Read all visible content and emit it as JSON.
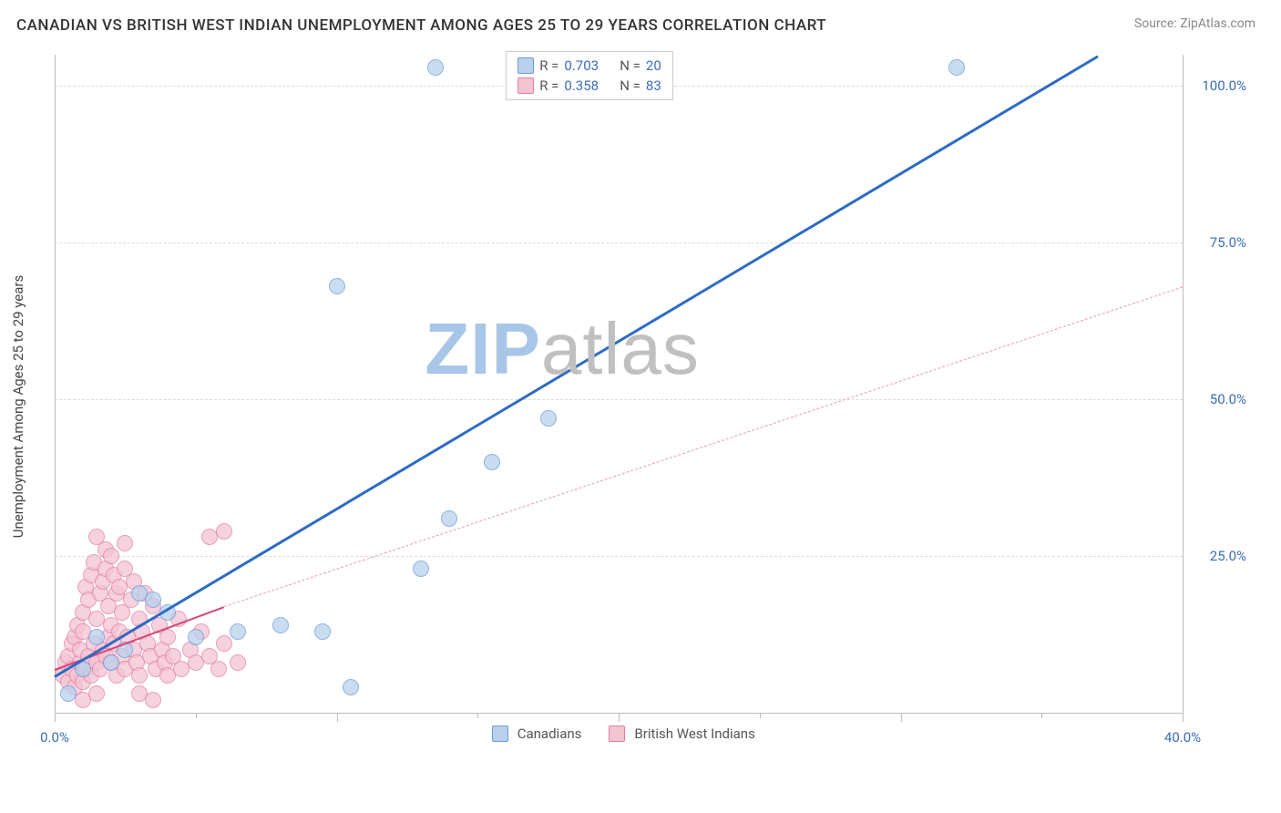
{
  "title": "CANADIAN VS BRITISH WEST INDIAN UNEMPLOYMENT AMONG AGES 25 TO 29 YEARS CORRELATION CHART",
  "source_label": "Source:",
  "source_value": "ZipAtlas.com",
  "ylabel": "Unemployment Among Ages 25 to 29 years",
  "watermark_zip": "ZIP",
  "watermark_atlas": "atlas",
  "watermark_color_zip": "#a8c6e8",
  "watermark_color_atlas": "#c0c0c0",
  "chart": {
    "type": "scatter",
    "background_color": "#ffffff",
    "grid_color": "#dddddd",
    "axis_color": "#bbbbbb",
    "xlim": [
      0,
      40
    ],
    "ylim": [
      0,
      105
    ],
    "xtick_major": [
      0,
      10,
      20,
      30,
      40
    ],
    "xtick_minor": [
      5,
      15,
      25,
      35
    ],
    "xtick_labels": [
      {
        "v": 0,
        "t": "0.0%"
      },
      {
        "v": 40,
        "t": "40.0%"
      }
    ],
    "ytick_lines": [
      25,
      50,
      75,
      100
    ],
    "ytick_labels": [
      {
        "v": 25,
        "t": "25.0%"
      },
      {
        "v": 50,
        "t": "50.0%"
      },
      {
        "v": 75,
        "t": "75.0%"
      },
      {
        "v": 100,
        "t": "100.0%"
      }
    ],
    "xtick_color": "#3b6db5",
    "ytick_color": "#3b6db5",
    "marker_size": 18,
    "marker_stroke": 1.5,
    "series": [
      {
        "id": "canadians",
        "label": "Canadians",
        "color_fill": "#b9d1ec",
        "color_stroke": "#6a9bd8",
        "R": "0.703",
        "N": "20",
        "trend": {
          "x1": 0,
          "y1": 6,
          "x2": 37,
          "y2": 105,
          "width": 3,
          "dash": false,
          "color": "#2d6bc4"
        },
        "points": [
          [
            0.5,
            3
          ],
          [
            1.0,
            7
          ],
          [
            1.5,
            12
          ],
          [
            2.0,
            8
          ],
          [
            2.5,
            10
          ],
          [
            3.0,
            19
          ],
          [
            3.5,
            18
          ],
          [
            4.0,
            16
          ],
          [
            5.0,
            12
          ],
          [
            6.5,
            13
          ],
          [
            8.0,
            14
          ],
          [
            9.5,
            13
          ],
          [
            10.5,
            4
          ],
          [
            13.0,
            23
          ],
          [
            13.5,
            103
          ],
          [
            14.0,
            31
          ],
          [
            15.5,
            40
          ],
          [
            17.5,
            47
          ],
          [
            10.0,
            68
          ],
          [
            32.0,
            103
          ]
        ]
      },
      {
        "id": "bwi",
        "label": "British West Indians",
        "color_fill": "#f4c4d3",
        "color_stroke": "#e37fa4",
        "R": "0.358",
        "N": "83",
        "trend_solid": {
          "x1": 0,
          "y1": 7,
          "x2": 6,
          "y2": 17,
          "width": 2.5,
          "color": "#d6447a"
        },
        "trend_dash": {
          "x1": 6,
          "y1": 17,
          "x2": 40,
          "y2": 68,
          "width": 1,
          "color": "#e89ab5"
        },
        "points": [
          [
            0.3,
            6
          ],
          [
            0.4,
            8
          ],
          [
            0.5,
            5
          ],
          [
            0.5,
            9
          ],
          [
            0.6,
            7
          ],
          [
            0.6,
            11
          ],
          [
            0.7,
            4
          ],
          [
            0.7,
            12
          ],
          [
            0.8,
            6
          ],
          [
            0.8,
            14
          ],
          [
            0.9,
            8
          ],
          [
            0.9,
            10
          ],
          [
            1.0,
            5
          ],
          [
            1.0,
            13
          ],
          [
            1.0,
            16
          ],
          [
            1.1,
            7
          ],
          [
            1.1,
            20
          ],
          [
            1.2,
            9
          ],
          [
            1.2,
            18
          ],
          [
            1.3,
            6
          ],
          [
            1.3,
            22
          ],
          [
            1.4,
            11
          ],
          [
            1.4,
            24
          ],
          [
            1.5,
            8
          ],
          [
            1.5,
            15
          ],
          [
            1.5,
            28
          ],
          [
            1.6,
            7
          ],
          [
            1.6,
            19
          ],
          [
            1.7,
            10
          ],
          [
            1.7,
            21
          ],
          [
            1.8,
            9
          ],
          [
            1.8,
            23
          ],
          [
            1.8,
            26
          ],
          [
            1.9,
            12
          ],
          [
            1.9,
            17
          ],
          [
            2.0,
            8
          ],
          [
            2.0,
            14
          ],
          [
            2.0,
            25
          ],
          [
            2.1,
            11
          ],
          [
            2.1,
            22
          ],
          [
            2.2,
            6
          ],
          [
            2.2,
            19
          ],
          [
            2.3,
            13
          ],
          [
            2.3,
            20
          ],
          [
            2.4,
            9
          ],
          [
            2.4,
            16
          ],
          [
            2.5,
            7
          ],
          [
            2.5,
            23
          ],
          [
            2.5,
            27
          ],
          [
            2.6,
            12
          ],
          [
            2.7,
            18
          ],
          [
            2.8,
            10
          ],
          [
            2.8,
            21
          ],
          [
            2.9,
            8
          ],
          [
            3.0,
            15
          ],
          [
            3.0,
            6
          ],
          [
            3.1,
            13
          ],
          [
            3.2,
            19
          ],
          [
            3.3,
            11
          ],
          [
            3.4,
            9
          ],
          [
            3.5,
            17
          ],
          [
            3.6,
            7
          ],
          [
            3.7,
            14
          ],
          [
            3.8,
            10
          ],
          [
            3.9,
            8
          ],
          [
            4.0,
            12
          ],
          [
            4.0,
            6
          ],
          [
            4.2,
            9
          ],
          [
            4.4,
            15
          ],
          [
            4.5,
            7
          ],
          [
            4.8,
            10
          ],
          [
            5.0,
            8
          ],
          [
            5.2,
            13
          ],
          [
            5.5,
            9
          ],
          [
            5.5,
            28
          ],
          [
            5.8,
            7
          ],
          [
            6.0,
            11
          ],
          [
            6.0,
            29
          ],
          [
            6.5,
            8
          ],
          [
            3.0,
            3
          ],
          [
            3.5,
            2
          ],
          [
            1.0,
            2
          ],
          [
            1.5,
            3
          ]
        ]
      }
    ]
  },
  "legend_top": {
    "R_label": "R =",
    "N_label": "N =",
    "text_color": "#555555",
    "value_color": "#3b6db5"
  },
  "legend_bottom": {
    "text_color": "#555555"
  }
}
